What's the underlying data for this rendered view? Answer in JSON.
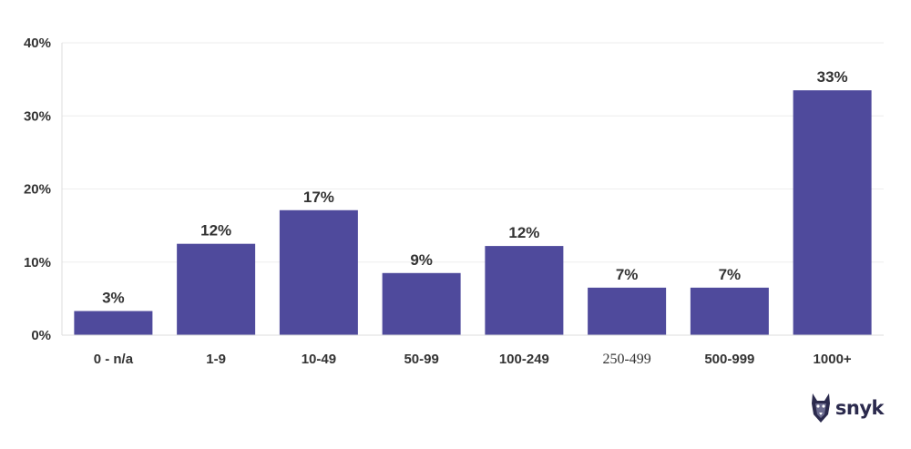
{
  "chart_data": {
    "type": "bar",
    "categories": [
      "0 - n/a",
      "1-9",
      "10-49",
      "50-99",
      "100-249",
      "250-499",
      "500-999",
      "1000+"
    ],
    "values": [
      3.3,
      12.5,
      17.1,
      8.5,
      12.2,
      6.5,
      6.5,
      33.5
    ],
    "value_labels": [
      "3%",
      "12%",
      "17%",
      "9%",
      "12%",
      "7%",
      "7%",
      "33%"
    ],
    "ylim": [
      0,
      40
    ],
    "yticks": [
      0,
      10,
      20,
      30,
      40
    ],
    "ytick_labels": [
      "0%",
      "10%",
      "20%",
      "30%",
      "40%"
    ],
    "grid": true,
    "title": "",
    "xlabel": "",
    "ylabel": ""
  },
  "colors": {
    "bar": "#4f4a9c",
    "grid": "#eeeeee",
    "axis": "#dddddd",
    "text": "#333333",
    "logo": "#2b2a4d"
  },
  "brand": {
    "name": "snyk",
    "icon": "snyk-dog-icon"
  }
}
